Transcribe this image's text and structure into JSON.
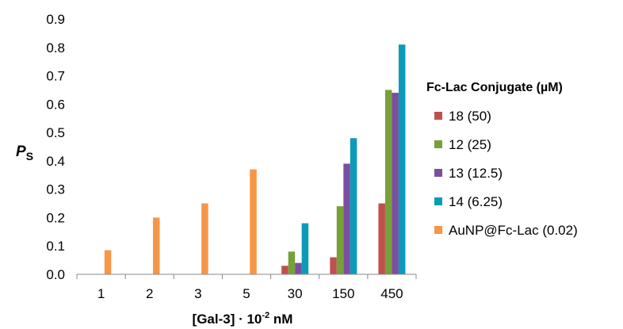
{
  "chart_data": {
    "type": "bar",
    "ylabel": "P",
    "ylabel_subscript": "S",
    "xlabel_prefix": "[Gal-3] · 10",
    "xlabel_superscript": "-2",
    "xlabel_suffix": " nM",
    "categories": [
      "1",
      "2",
      "3",
      "5",
      "30",
      "150",
      "450"
    ],
    "ylim": [
      0,
      0.9
    ],
    "yticks": [
      "0.0",
      "0.1",
      "0.2",
      "0.3",
      "0.4",
      "0.5",
      "0.6",
      "0.7",
      "0.8",
      "0.9"
    ],
    "ytick_values": [
      0,
      0.1,
      0.2,
      0.3,
      0.4,
      0.5,
      0.6,
      0.7,
      0.8,
      0.9
    ],
    "grid": false,
    "legend_position": "right",
    "legend_title": "Fc-Lac Conjugate (µM)",
    "series": [
      {
        "name": "18 (50)",
        "color": "#C0504D",
        "values": [
          null,
          null,
          null,
          null,
          0.03,
          0.06,
          0.25
        ]
      },
      {
        "name": "12 (25)",
        "color": "#77A03A",
        "values": [
          null,
          null,
          null,
          null,
          0.08,
          0.24,
          0.65
        ]
      },
      {
        "name": "13 (12.5)",
        "color": "#7B4F9E",
        "values": [
          null,
          null,
          null,
          null,
          0.04,
          0.39,
          0.64
        ]
      },
      {
        "name": "14 (6.25)",
        "color": "#0B9BB8",
        "values": [
          null,
          null,
          null,
          null,
          0.18,
          0.48,
          0.81
        ]
      },
      {
        "name": "AuNP@Fc-Lac (0.02)",
        "color": "#F79646",
        "values": [
          0.085,
          0.2,
          0.25,
          0.37,
          null,
          null,
          null
        ]
      }
    ]
  }
}
